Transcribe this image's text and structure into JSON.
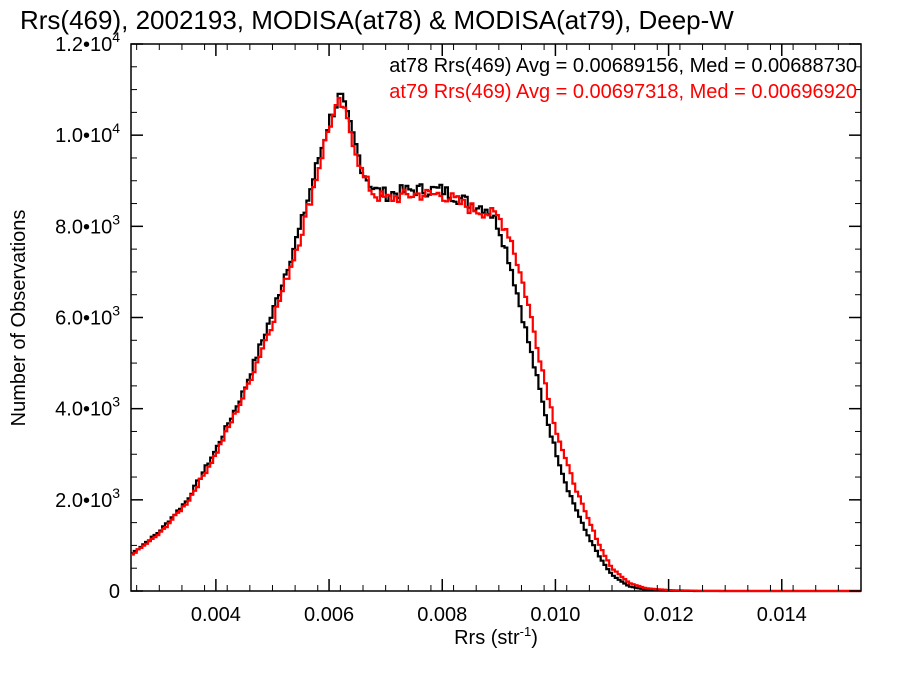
{
  "chart_data": {
    "type": "line",
    "title": "Rrs(469), 2002193, MODISA(at78) & MODISA(at79), Deep-W",
    "xlabel": "Rrs (str",
    "xlabel_sup": "-1",
    "xlabel_close": ")",
    "ylabel": "Number of Observations",
    "xlim": [
      0.0025,
      0.0154
    ],
    "ylim": [
      0,
      12000
    ],
    "xticks": [
      {
        "value": 0.004,
        "label": "0.004"
      },
      {
        "value": 0.006,
        "label": "0.006"
      },
      {
        "value": 0.008,
        "label": "0.008"
      },
      {
        "value": 0.01,
        "label": "0.010"
      },
      {
        "value": 0.012,
        "label": "0.012"
      },
      {
        "value": 0.014,
        "label": "0.014"
      }
    ],
    "yticks": [
      {
        "value": 0,
        "label": "0",
        "sup": ""
      },
      {
        "value": 2000,
        "label": "2.0•10",
        "sup": "3"
      },
      {
        "value": 4000,
        "label": "4.0•10",
        "sup": "3"
      },
      {
        "value": 6000,
        "label": "6.0•10",
        "sup": "3"
      },
      {
        "value": 8000,
        "label": "8.0•10",
        "sup": "3"
      },
      {
        "value": 10000,
        "label": "1.0•10",
        "sup": "4"
      },
      {
        "value": 12000,
        "label": "1.2•10",
        "sup": "4"
      }
    ],
    "series": [
      {
        "name": "at78",
        "color": "#000000",
        "stat_text": "at78 Rrs(469) Avg = 0.00689156, Med = 0.00688730",
        "x": [
          0.0025,
          0.003,
          0.0035,
          0.004,
          0.0045,
          0.005,
          0.0055,
          0.0058,
          0.006,
          0.0062,
          0.0064,
          0.0066,
          0.0068,
          0.007,
          0.0075,
          0.008,
          0.0085,
          0.0088,
          0.009,
          0.0092,
          0.0095,
          0.0098,
          0.01,
          0.0102,
          0.0105,
          0.0108,
          0.011,
          0.0113,
          0.0116,
          0.012,
          0.0125,
          0.013,
          0.0154
        ],
        "y": [
          800,
          1300,
          2000,
          3100,
          4400,
          6100,
          8000,
          9400,
          10300,
          10900,
          10100,
          9200,
          8800,
          8700,
          8800,
          8800,
          8500,
          8400,
          8000,
          7200,
          5600,
          4000,
          3100,
          2300,
          1400,
          700,
          350,
          100,
          30,
          10,
          0,
          0,
          0
        ]
      },
      {
        "name": "at79",
        "color": "#ff0000",
        "stat_text": "at79 Rrs(469) Avg = 0.00697318, Med = 0.00696920",
        "x": [
          0.0025,
          0.003,
          0.0035,
          0.004,
          0.0045,
          0.005,
          0.0055,
          0.0058,
          0.006,
          0.0062,
          0.0064,
          0.0066,
          0.0068,
          0.007,
          0.0075,
          0.008,
          0.0085,
          0.0088,
          0.009,
          0.0092,
          0.0095,
          0.0098,
          0.01,
          0.0102,
          0.0105,
          0.0108,
          0.011,
          0.0113,
          0.0116,
          0.012,
          0.0125,
          0.013,
          0.0154
        ],
        "y": [
          780,
          1250,
          1950,
          3000,
          4300,
          5900,
          7800,
          9200,
          10200,
          10750,
          10000,
          9100,
          8700,
          8600,
          8700,
          8700,
          8400,
          8300,
          8200,
          7800,
          6400,
          4700,
          3600,
          2800,
          1800,
          950,
          500,
          180,
          60,
          20,
          5,
          0,
          0
        ]
      }
    ]
  }
}
